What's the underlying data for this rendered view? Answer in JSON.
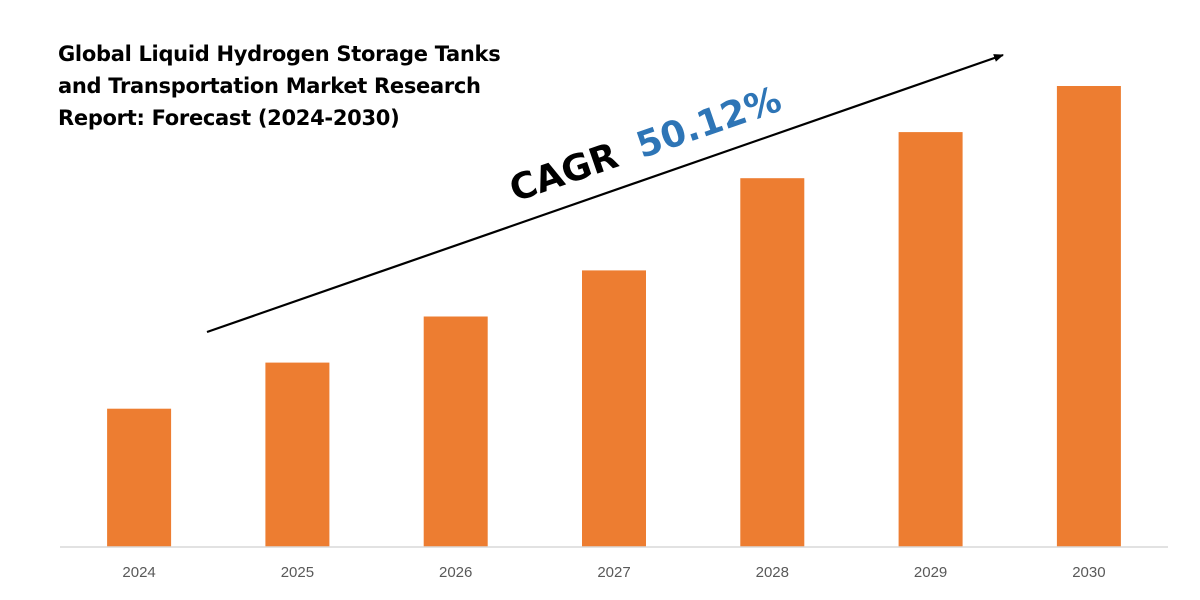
{
  "chart_data": {
    "type": "bar",
    "title": "Global Liquid Hydrogen Storage Tanks and Transportation Market Research Report: Forecast (2024-2030)",
    "categories": [
      "2024",
      "2025",
      "2026",
      "2027",
      "2028",
      "2029",
      "2030"
    ],
    "values": [
      30,
      40,
      50,
      60,
      80,
      90,
      100
    ],
    "ylim": [
      0,
      100
    ],
    "grid": false,
    "legend": "none",
    "bar_color": "#ED7D31",
    "axis_color": "#D9D9D9",
    "tick_color": "#595959",
    "annotation": {
      "label": "CAGR",
      "value": "50.12%",
      "label_color": "#000000",
      "value_color": "#2E75B6",
      "arrow": "up-right"
    }
  }
}
